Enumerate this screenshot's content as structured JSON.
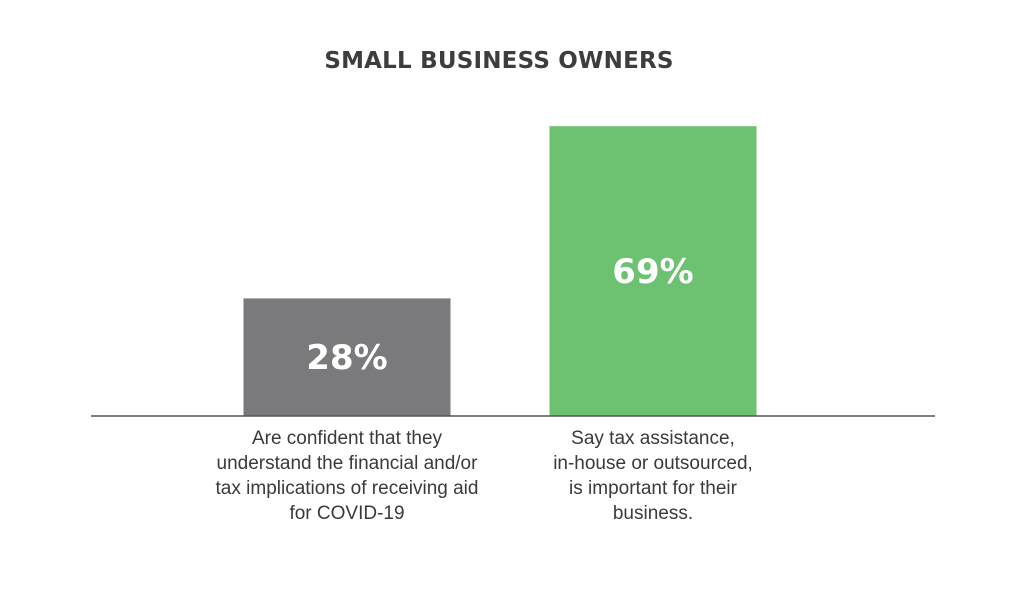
{
  "chart_data": {
    "type": "bar",
    "title": "SMALL BUSINESS OWNERS",
    "categories": [
      "Are confident that they understand the financial and/or tax implications of receiving aid for COVID-19",
      "Say tax assistance, in-house or outsourced, is important for their business."
    ],
    "values": [
      28,
      69
    ],
    "value_labels": [
      "28%",
      "69%"
    ],
    "colors": [
      "#7a7a7c",
      "#6cc270"
    ],
    "baseline_color": "#555555",
    "ylim": [
      0,
      100
    ],
    "grid": false,
    "legend": "none"
  }
}
